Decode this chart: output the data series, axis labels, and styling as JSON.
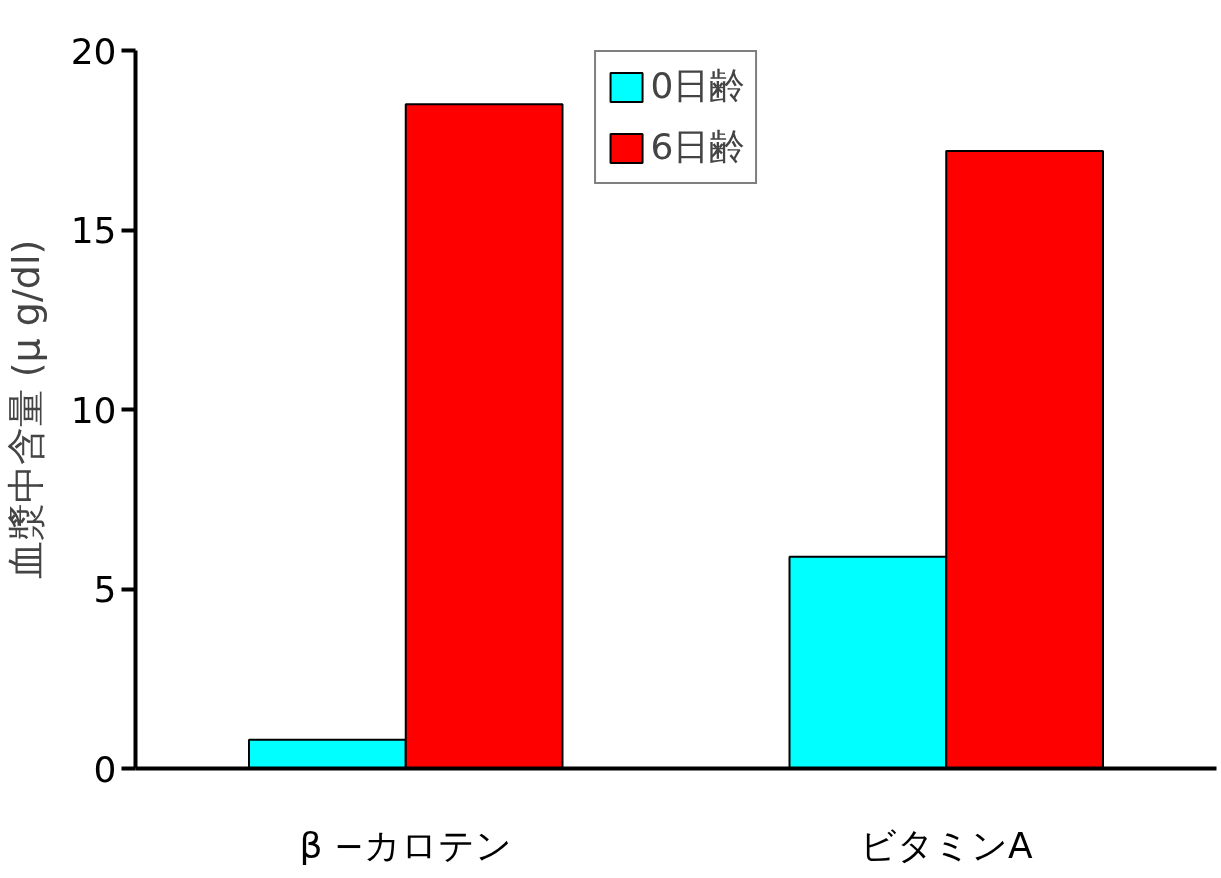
{
  "chart_data": {
    "type": "bar",
    "ylabel": "血漿中含量 (μ g/dl)",
    "categories": [
      "β −カロテン",
      "ビタミンA"
    ],
    "series": [
      {
        "name": "0日齢",
        "color": "#00ffff",
        "values": [
          0.8,
          5.9
        ]
      },
      {
        "name": "6日齢",
        "color": "#ff0000",
        "values": [
          18.5,
          17.2
        ]
      }
    ],
    "ylim": [
      0,
      20
    ],
    "yticks": [
      0,
      5,
      10,
      15,
      20
    ],
    "grid": false,
    "legend": "top"
  }
}
